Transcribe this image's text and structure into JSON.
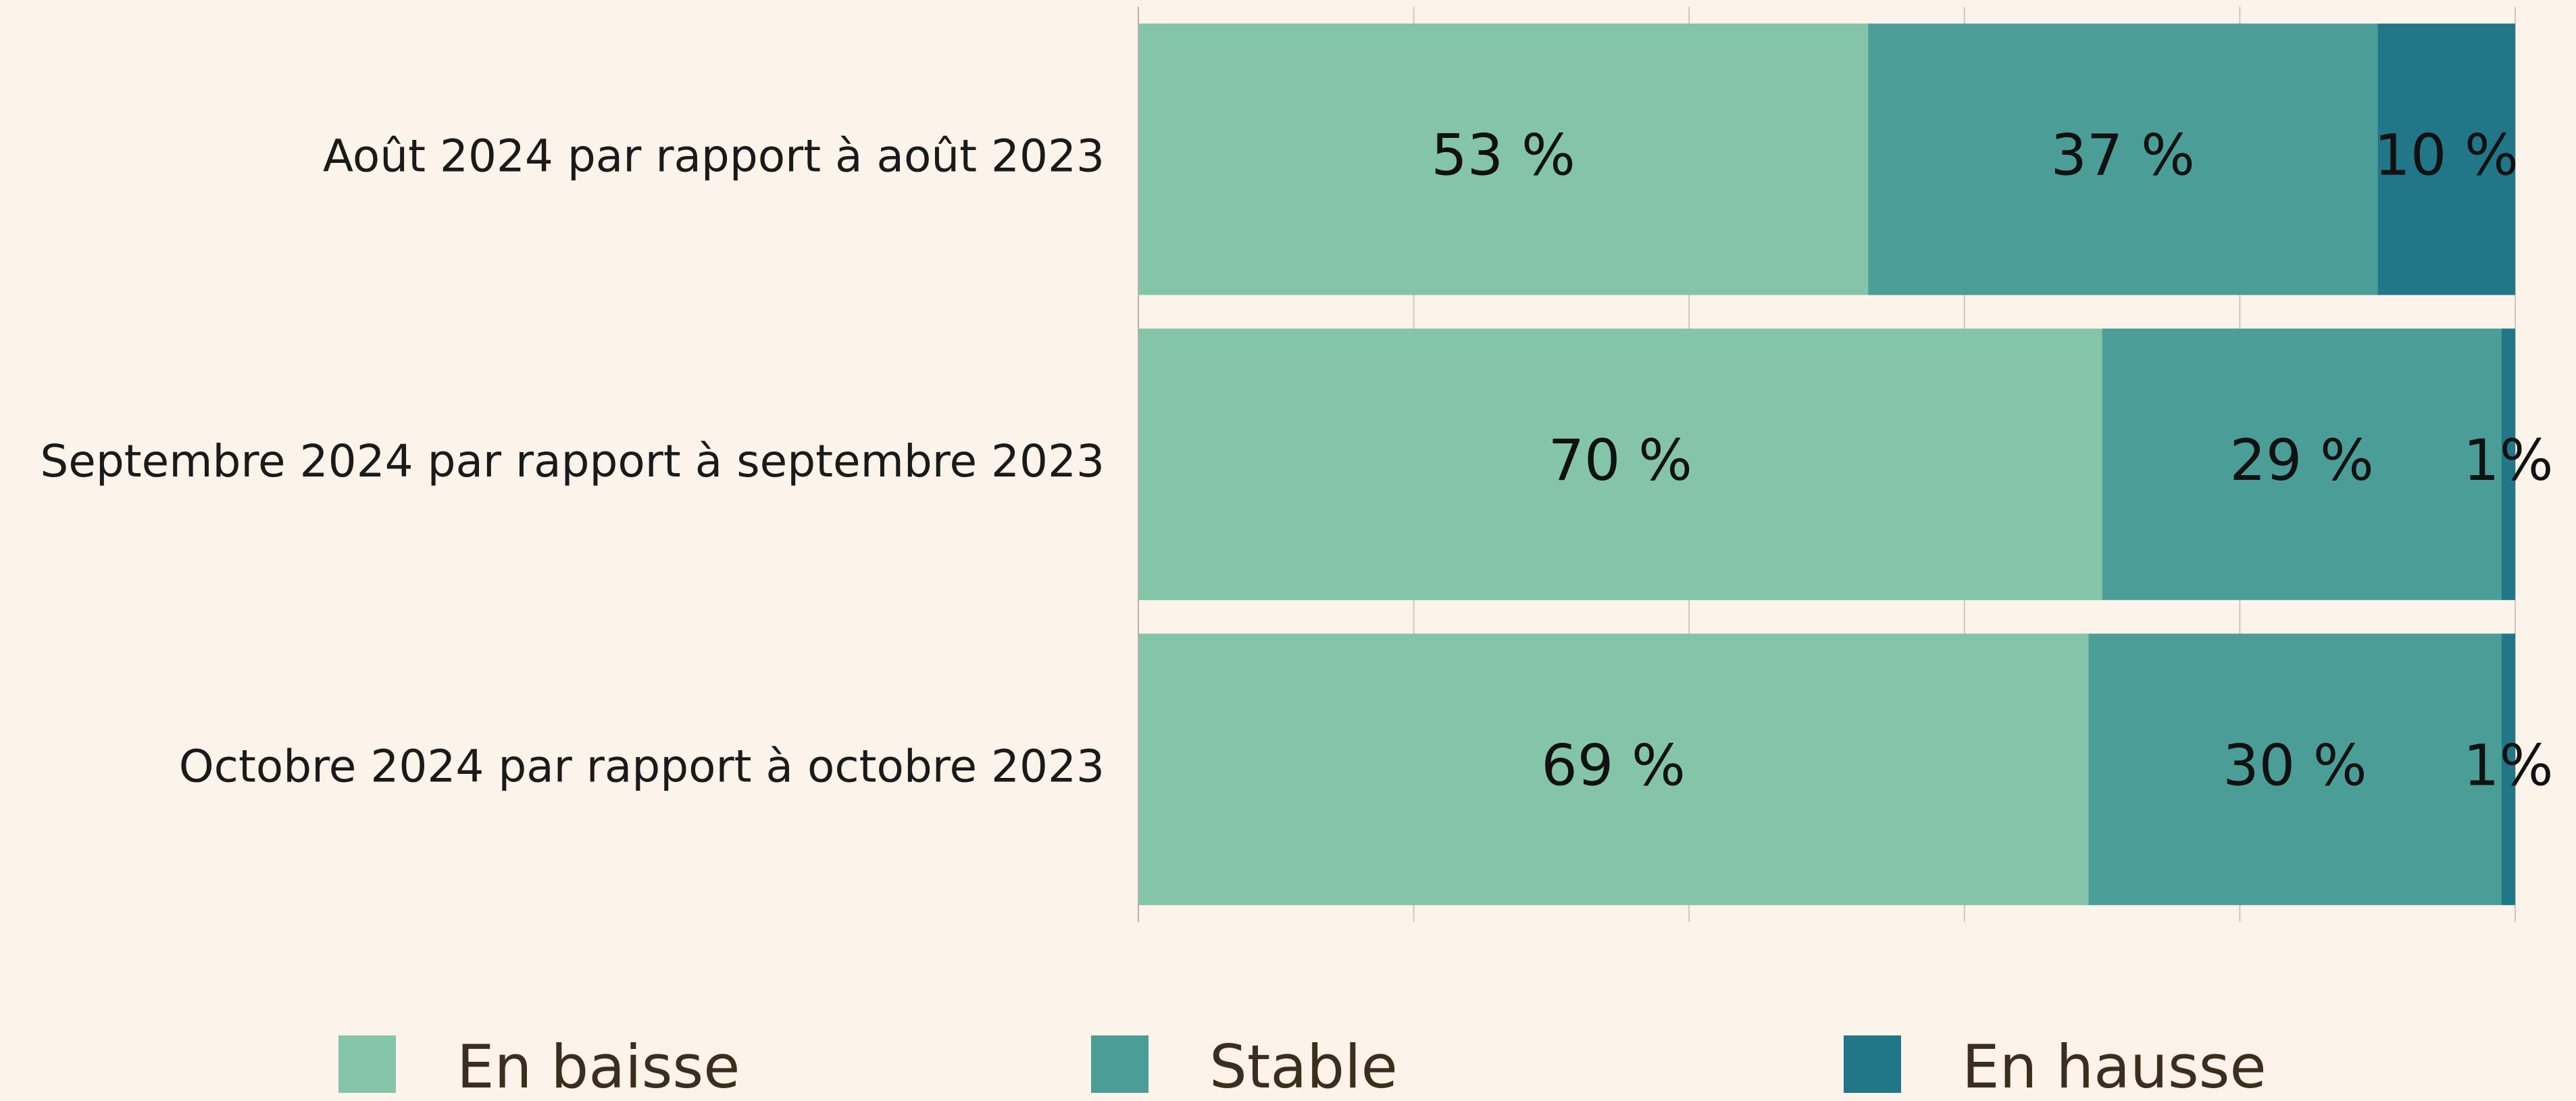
{
  "chart_data": {
    "type": "stacked_barh",
    "categories": [
      "Août 2024 par rapport à août 2023",
      "Septembre 2024 par rapport à septembre 2023",
      "Octobre 2024 par rapport à octobre 2023"
    ],
    "series": [
      {
        "name": "En baisse",
        "color": "#84c5a9",
        "values": [
          53,
          70,
          69
        ],
        "value_labels": [
          "53 %",
          "70 %",
          "69 %"
        ]
      },
      {
        "name": "Stable",
        "color": "#4b9e98",
        "values": [
          37,
          29,
          30
        ],
        "value_labels": [
          "37 %",
          "29 %",
          "30 %"
        ]
      },
      {
        "name": "En hausse",
        "color": "#217787",
        "values": [
          10,
          1,
          1
        ],
        "value_labels": [
          "10 %",
          "1%",
          "1%"
        ]
      }
    ],
    "xlim": [
      0,
      100
    ],
    "xticks": [
      0,
      20,
      40,
      60,
      80,
      100
    ],
    "grid": true,
    "legend": "bottom"
  }
}
